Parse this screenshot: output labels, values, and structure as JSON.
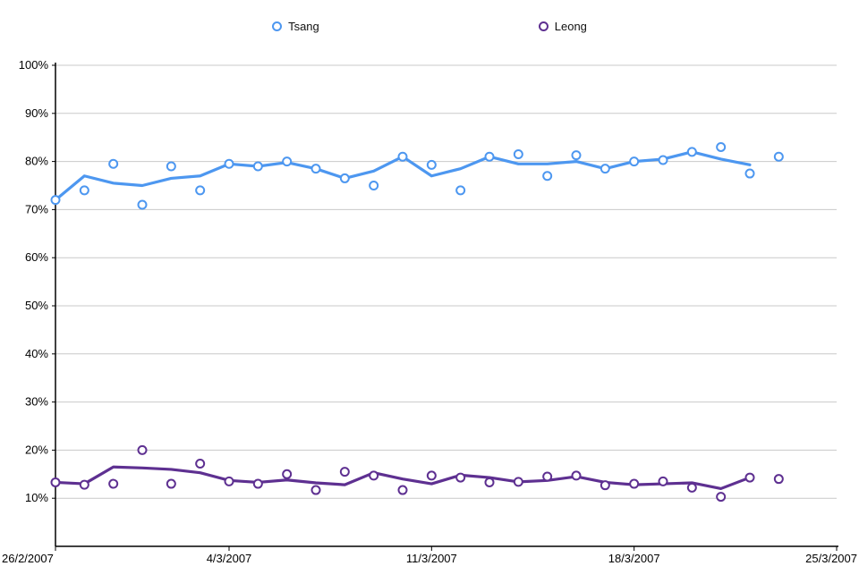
{
  "legend": {
    "items": [
      {
        "label": "Tsang",
        "color": "#4d97f0"
      },
      {
        "label": "Leong",
        "color": "#5e3091"
      }
    ]
  },
  "chart_data": {
    "type": "line",
    "title": "",
    "xlabel": "",
    "ylabel": "",
    "y_format": "percent",
    "ylim": [
      0,
      100
    ],
    "y_ticks": [
      10,
      20,
      30,
      40,
      50,
      60,
      70,
      80,
      90,
      100
    ],
    "x_range_days": [
      0,
      27
    ],
    "x_tick_days": [
      0,
      6,
      13,
      20,
      27
    ],
    "x_tick_labels": [
      "26/2/2007",
      "4/3/2007",
      "11/3/2007",
      "18/3/2007",
      "25/3/2007"
    ],
    "grid": true,
    "legend_position": "top",
    "colors": {
      "grid": "#c9c9c9",
      "axis": "#000000",
      "background": "#ffffff"
    },
    "series": [
      {
        "name": "Tsang",
        "color": "#4d97f0",
        "scatter_x": [
          0,
          1,
          2,
          3,
          4,
          5,
          6,
          7,
          8,
          9,
          10,
          11,
          12,
          13,
          14,
          15,
          16,
          17,
          18,
          19,
          20,
          21,
          22,
          23,
          24,
          25
        ],
        "scatter_y": [
          72,
          74,
          79.5,
          71,
          79,
          74,
          79.5,
          79,
          80,
          78.5,
          76.5,
          75,
          81,
          79.3,
          74,
          81,
          81.5,
          77,
          81.3,
          78.5,
          80,
          80.3,
          82,
          83,
          77.5,
          81
        ],
        "line_x": [
          0,
          1,
          2,
          3,
          4,
          5,
          6,
          7,
          8,
          9,
          10,
          11,
          12,
          13,
          14,
          15,
          16,
          17,
          18,
          19,
          20,
          21,
          22,
          23,
          24
        ],
        "line_y": [
          72,
          77,
          75.5,
          75,
          76.5,
          77,
          79.5,
          79,
          79.8,
          78.5,
          76.5,
          78,
          81,
          77,
          78.5,
          81,
          79.5,
          79.5,
          80,
          78.5,
          80,
          80.5,
          82,
          80.5,
          79.3
        ]
      },
      {
        "name": "Leong",
        "color": "#5e3091",
        "scatter_x": [
          0,
          1,
          2,
          3,
          4,
          5,
          6,
          7,
          8,
          9,
          10,
          11,
          12,
          13,
          14,
          15,
          16,
          17,
          18,
          19,
          20,
          21,
          22,
          23,
          24,
          25
        ],
        "scatter_y": [
          13.3,
          12.8,
          13,
          20,
          13,
          17.2,
          13.5,
          13,
          15,
          11.7,
          15.5,
          14.7,
          11.7,
          14.7,
          14.3,
          13.3,
          13.4,
          14.5,
          14.7,
          12.7,
          13,
          13.5,
          12.2,
          10.3,
          14.3,
          14
        ],
        "line_x": [
          0,
          1,
          2,
          3,
          4,
          5,
          6,
          7,
          8,
          9,
          10,
          11,
          12,
          13,
          14,
          15,
          16,
          17,
          18,
          19,
          20,
          21,
          22,
          23,
          24
        ],
        "line_y": [
          13.3,
          13,
          16.5,
          16.3,
          16,
          15.3,
          13.7,
          13.3,
          13.8,
          13.2,
          12.8,
          15.3,
          14,
          13,
          14.8,
          14.3,
          13.4,
          13.7,
          14.5,
          13.3,
          12.8,
          13,
          13.2,
          12,
          14.3
        ]
      }
    ]
  }
}
